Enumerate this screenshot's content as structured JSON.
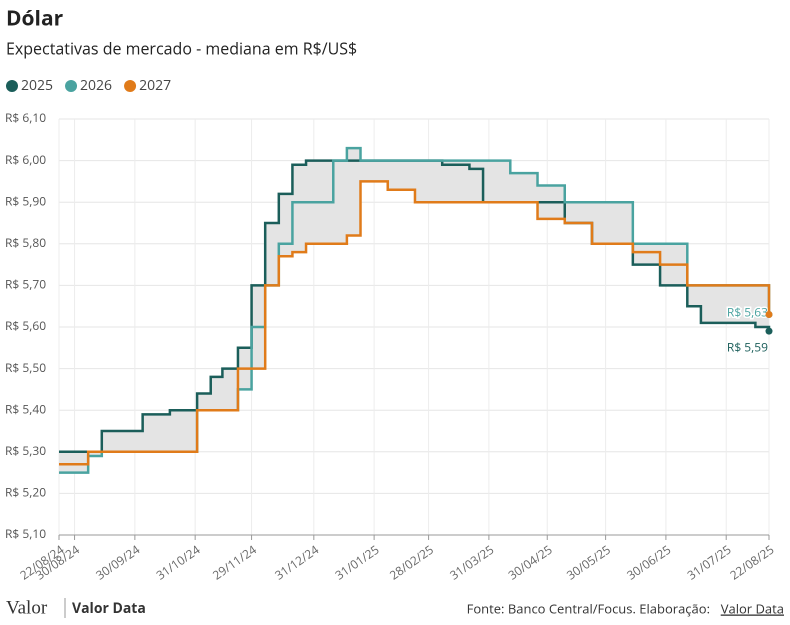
{
  "chart_data": {
    "type": "line",
    "title": "Dólar",
    "subtitle": "Expectativas de mercado - mediana em R$/US$",
    "x": [
      "22/08/24",
      "06/09/24",
      "13/09/24",
      "27/09/24",
      "04/10/24",
      "18/10/24",
      "01/11/24",
      "08/11/24",
      "14/11/24",
      "22/11/24",
      "29/11/24",
      "06/12/24",
      "13/12/24",
      "20/12/24",
      "27/12/24",
      "03/01/25",
      "10/01/25",
      "17/01/25",
      "24/01/25",
      "07/02/25",
      "21/02/25",
      "07/03/25",
      "21/03/25",
      "28/03/25",
      "11/04/25",
      "25/04/25",
      "09/05/25",
      "23/05/25",
      "06/06/25",
      "13/06/25",
      "27/06/25",
      "11/07/25",
      "18/07/25",
      "01/08/25",
      "15/08/25",
      "22/08/25"
    ],
    "series": [
      {
        "name": "2025",
        "color": "#1b5e5a",
        "values": [
          5.3,
          5.3,
          5.35,
          5.35,
          5.39,
          5.4,
          5.44,
          5.48,
          5.5,
          5.55,
          5.7,
          5.85,
          5.92,
          5.99,
          6.0,
          6.0,
          6.0,
          6.0,
          6.0,
          6.0,
          6.0,
          5.99,
          5.98,
          5.9,
          5.9,
          5.9,
          5.85,
          5.8,
          5.8,
          5.75,
          5.7,
          5.65,
          5.61,
          5.61,
          5.6,
          5.59
        ],
        "value_labels": [
          null,
          null,
          null,
          null,
          null,
          null,
          null,
          null,
          null,
          null,
          null,
          null,
          null,
          null,
          null,
          null,
          null,
          null,
          null,
          null,
          null,
          null,
          null,
          null,
          null,
          null,
          null,
          null,
          null,
          null,
          null,
          null,
          null,
          null,
          null,
          "R$ 5,59"
        ]
      },
      {
        "name": "2026",
        "color": "#4aa3a0",
        "values": [
          5.25,
          5.29,
          5.3,
          5.3,
          5.3,
          5.3,
          5.4,
          5.4,
          5.4,
          5.45,
          5.6,
          5.7,
          5.8,
          5.9,
          5.9,
          5.9,
          6.0,
          6.03,
          6.0,
          6.0,
          6.0,
          6.0,
          6.0,
          6.0,
          5.97,
          5.94,
          5.9,
          5.9,
          5.9,
          5.8,
          5.8,
          5.7,
          5.7,
          5.7,
          5.7,
          5.63
        ],
        "value_labels": [
          null,
          null,
          null,
          null,
          null,
          null,
          null,
          null,
          null,
          null,
          null,
          null,
          null,
          null,
          null,
          null,
          null,
          null,
          null,
          null,
          null,
          null,
          null,
          null,
          null,
          null,
          null,
          null,
          null,
          null,
          null,
          null,
          null,
          null,
          null,
          "R$ 5,63"
        ]
      },
      {
        "name": "2027",
        "color": "#e07b1a",
        "values": [
          5.27,
          5.3,
          5.3,
          5.3,
          5.3,
          5.3,
          5.4,
          5.4,
          5.4,
          5.5,
          5.5,
          5.7,
          5.77,
          5.78,
          5.8,
          5.8,
          5.8,
          5.82,
          5.95,
          5.93,
          5.9,
          5.9,
          5.9,
          5.9,
          5.9,
          5.86,
          5.85,
          5.8,
          5.8,
          5.78,
          5.75,
          5.7,
          5.7,
          5.7,
          5.7,
          5.63
        ]
      }
    ],
    "xlim": [
      "22/08/24",
      "22/08/25"
    ],
    "xticks": [
      "22/08/24",
      "30/08/24",
      "30/09/24",
      "31/10/24",
      "29/11/24",
      "31/12/24",
      "31/01/25",
      "28/02/25",
      "31/03/25",
      "30/04/25",
      "30/05/25",
      "30/06/25",
      "31/07/25",
      "22/08/25"
    ],
    "ylim": [
      5.1,
      6.1
    ],
    "yticks": [
      {
        "value": 5.1,
        "label": "R$ 5,10"
      },
      {
        "value": 5.2,
        "label": "R$ 5,20"
      },
      {
        "value": 5.3,
        "label": "R$ 5,30"
      },
      {
        "value": 5.4,
        "label": "R$ 5,40"
      },
      {
        "value": 5.5,
        "label": "R$ 5,50"
      },
      {
        "value": 5.6,
        "label": "R$ 5,60"
      },
      {
        "value": 5.7,
        "label": "R$ 5,70"
      },
      {
        "value": 5.8,
        "label": "R$ 5,80"
      },
      {
        "value": 5.9,
        "label": "R$ 5,90"
      },
      {
        "value": 6.0,
        "label": "R$ 6,00"
      },
      {
        "value": 6.1,
        "label": "R$ 6,10"
      }
    ],
    "grid": true,
    "step": true,
    "legend": "top-left"
  },
  "footer": {
    "logo": "Valor",
    "brand": "Valor Data",
    "source": "Fonte: Banco Central/Focus. Elaboração:",
    "source_link": "Valor Data"
  }
}
